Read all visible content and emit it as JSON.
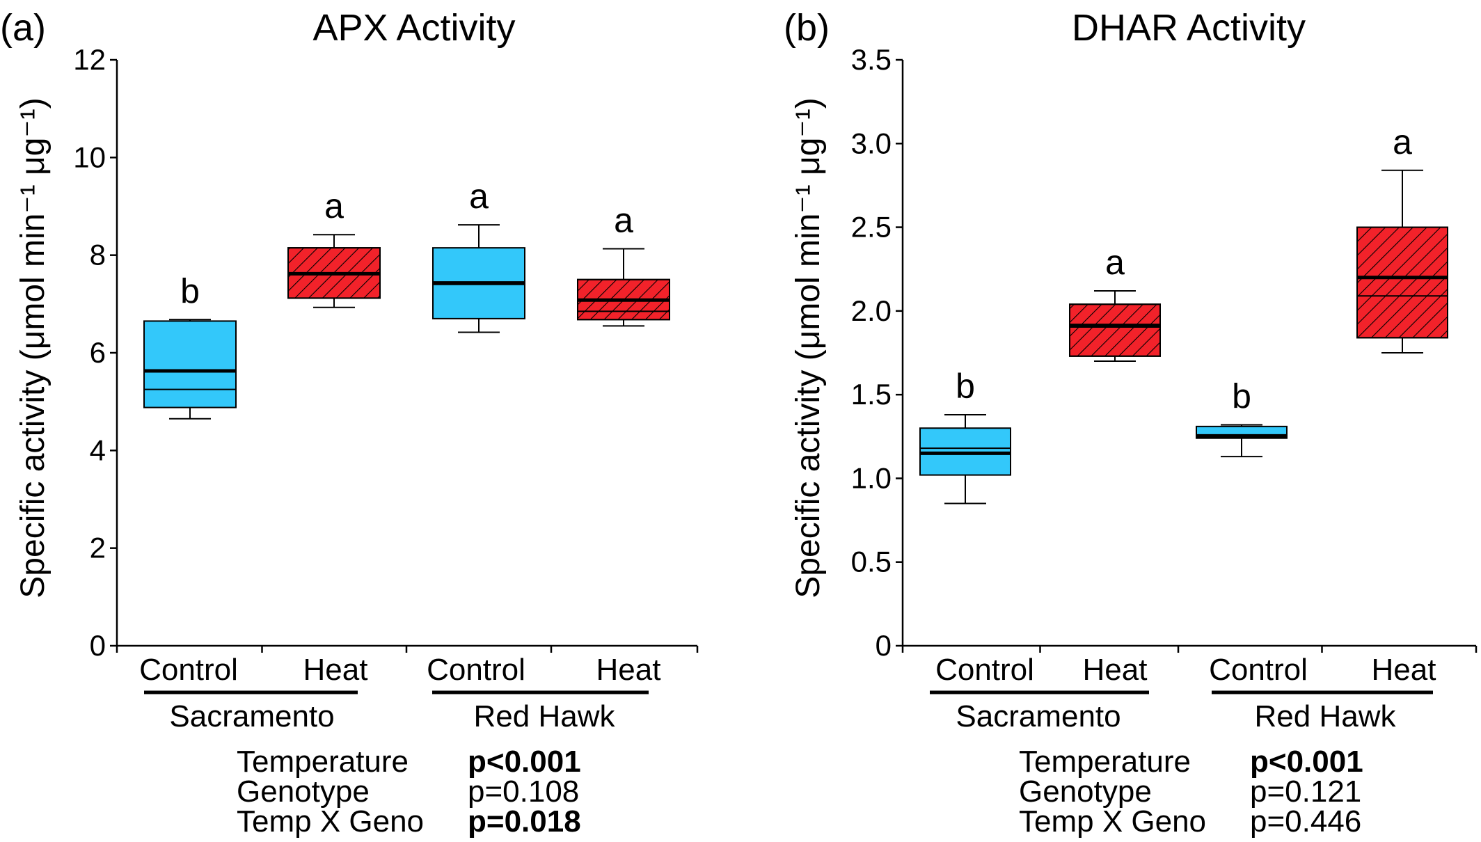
{
  "colors": {
    "control_fill": "#33C8FA",
    "heat_fill": "#F2222A",
    "axis": "#000000"
  },
  "chart_data": [
    {
      "type": "box",
      "panel_label": "(a)",
      "title": "APX Activity",
      "ylabel": "Specific activity (μmol min⁻¹ μg⁻¹)",
      "ylim": [
        0,
        12
      ],
      "yticks": [
        "0",
        "2",
        "4",
        "6",
        "8",
        "10",
        "12"
      ],
      "groups": [
        "Sacramento",
        "Red Hawk"
      ],
      "boxes": [
        {
          "group": "Sacramento",
          "treatment": "Control",
          "min": 4.65,
          "q1": 4.88,
          "median": 5.25,
          "mean": 5.63,
          "q3": 6.65,
          "max": 6.68,
          "letter": "b"
        },
        {
          "group": "Sacramento",
          "treatment": "Heat",
          "min": 6.93,
          "q1": 7.12,
          "median": 7.62,
          "mean": 7.62,
          "q3": 8.15,
          "max": 8.42,
          "letter": "a"
        },
        {
          "group": "Red Hawk",
          "treatment": "Control",
          "min": 6.42,
          "q1": 6.7,
          "median": 7.4,
          "mean": 7.43,
          "q3": 8.15,
          "max": 8.62,
          "letter": "a"
        },
        {
          "group": "Red Hawk",
          "treatment": "Heat",
          "min": 6.55,
          "q1": 6.68,
          "median": 6.85,
          "mean": 7.08,
          "q3": 7.5,
          "max": 8.13,
          "letter": "a"
        }
      ],
      "stats": [
        {
          "label": "Temperature",
          "value": "p<0.001",
          "bold": true
        },
        {
          "label": "Genotype",
          "value": "p=0.108",
          "bold": false
        },
        {
          "label": "Temp X Geno",
          "value": "p=0.018",
          "bold": true
        }
      ]
    },
    {
      "type": "box",
      "panel_label": "(b)",
      "title": "DHAR Activity",
      "ylabel": "Specific activity (μmol min⁻¹ μg⁻¹)",
      "ylim": [
        0,
        3.5
      ],
      "yticks": [
        "0",
        "0.5",
        "1.0",
        "1.5",
        "2.0",
        "2.5",
        "3.0",
        "3.5"
      ],
      "groups": [
        "Sacramento",
        "Red Hawk"
      ],
      "boxes": [
        {
          "group": "Sacramento",
          "treatment": "Control",
          "min": 0.85,
          "q1": 1.02,
          "median": 1.18,
          "mean": 1.15,
          "q3": 1.3,
          "max": 1.38,
          "letter": "b"
        },
        {
          "group": "Sacramento",
          "treatment": "Heat",
          "min": 1.7,
          "q1": 1.73,
          "median": 1.92,
          "mean": 1.91,
          "q3": 2.04,
          "max": 2.12,
          "letter": "a"
        },
        {
          "group": "Red Hawk",
          "treatment": "Control",
          "min": 1.13,
          "q1": 1.24,
          "median": 1.26,
          "mean": 1.25,
          "q3": 1.31,
          "max": 1.32,
          "letter": "b"
        },
        {
          "group": "Red Hawk",
          "treatment": "Heat",
          "min": 1.75,
          "q1": 1.84,
          "median": 2.09,
          "mean": 2.2,
          "q3": 2.5,
          "max": 2.84,
          "letter": "a"
        }
      ],
      "stats": [
        {
          "label": "Temperature",
          "value": "p<0.001",
          "bold": true
        },
        {
          "label": "Genotype",
          "value": "p=0.121",
          "bold": false
        },
        {
          "label": "Temp X Geno",
          "value": "p=0.446",
          "bold": false
        }
      ]
    }
  ]
}
